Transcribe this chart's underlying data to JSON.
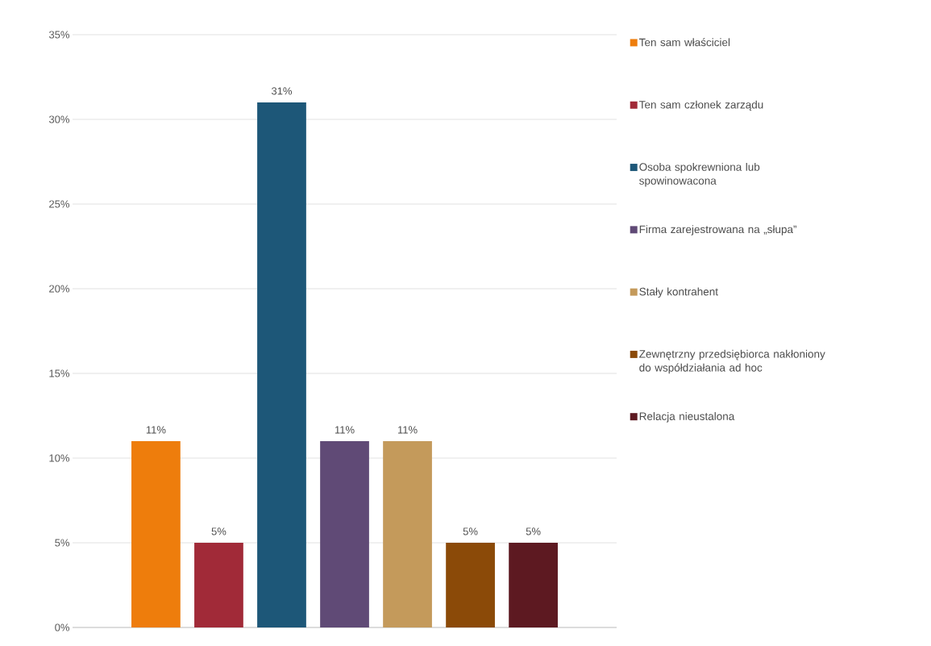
{
  "chart_data": {
    "type": "bar",
    "categories": [
      null
    ],
    "series": [
      {
        "name": "Ten sam właściciel",
        "color": "#ee7d0c",
        "values": [
          11
        ],
        "value_labels": [
          "11%"
        ]
      },
      {
        "name": "Ten sam członek zarządu",
        "color": "#a12a38",
        "values": [
          5
        ],
        "value_labels": [
          "5%"
        ]
      },
      {
        "name": "Osoba spokrewniona lub spowinowacona",
        "color": "#1d5778",
        "values": [
          31
        ],
        "value_labels": [
          "31%"
        ]
      },
      {
        "name": "Firma zarejestrowana na „słupa”",
        "color": "#604a76",
        "values": [
          11
        ],
        "value_labels": [
          "11%"
        ]
      },
      {
        "name": "Stały kontrahent",
        "color": "#c49a5b",
        "values": [
          11
        ],
        "value_labels": [
          "11%"
        ]
      },
      {
        "name": "Zewnętrzny przedsiębiorca nakłoniony do współdziałania ad hoc",
        "color": "#8b4a08",
        "values": [
          5
        ],
        "value_labels": [
          "5%"
        ]
      },
      {
        "name": "Relacja nieustalona",
        "color": "#5d1921",
        "values": [
          5
        ],
        "value_labels": [
          "5%"
        ]
      }
    ],
    "ylim": [
      0,
      35
    ],
    "yticks": [
      {
        "value": 0,
        "label": "0%"
      },
      {
        "value": 5,
        "label": "5%"
      },
      {
        "value": 10,
        "label": "10%"
      },
      {
        "value": 15,
        "label": "15%"
      },
      {
        "value": 20,
        "label": "20%"
      },
      {
        "value": 25,
        "label": "25%"
      },
      {
        "value": 30,
        "label": "30%"
      },
      {
        "value": 35,
        "label": "35%"
      }
    ],
    "grid": "y",
    "legend": "right"
  }
}
